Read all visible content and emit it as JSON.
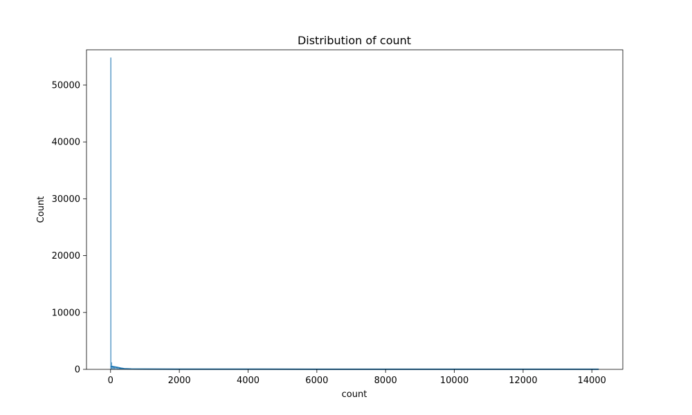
{
  "chart_data": {
    "type": "histogram",
    "title": "Distribution of count",
    "xlabel": "count",
    "ylabel": "Count",
    "xlim": [
      -700,
      14900
    ],
    "ylim": [
      0,
      56200
    ],
    "x_ticks": [
      0,
      2000,
      4000,
      6000,
      8000,
      10000,
      12000,
      14000
    ],
    "y_ticks": [
      0,
      10000,
      20000,
      30000,
      40000,
      50000
    ],
    "bins": [
      {
        "x0": 0,
        "x1": 20,
        "count": 54800
      },
      {
        "x0": 20,
        "x1": 40,
        "count": 1200
      },
      {
        "x0": 40,
        "x1": 70,
        "count": 600
      },
      {
        "x0": 70,
        "x1": 120,
        "count": 300
      },
      {
        "x0": 120,
        "x1": 200,
        "count": 180
      },
      {
        "x0": 200,
        "x1": 400,
        "count": 90
      },
      {
        "x0": 400,
        "x1": 1000,
        "count": 30
      },
      {
        "x0": 1000,
        "x1": 14200,
        "count": 5
      }
    ],
    "kde": {
      "x": [
        0,
        100,
        200,
        300,
        400,
        600,
        1000,
        2000,
        4000,
        6000,
        8000,
        10000,
        12000,
        14200
      ],
      "y": [
        480,
        440,
        330,
        200,
        110,
        60,
        40,
        30,
        25,
        22,
        20,
        18,
        15,
        10
      ]
    },
    "colors": {
      "bar": "#1f77b4",
      "kde": "#1f77b4"
    },
    "grid": false
  }
}
